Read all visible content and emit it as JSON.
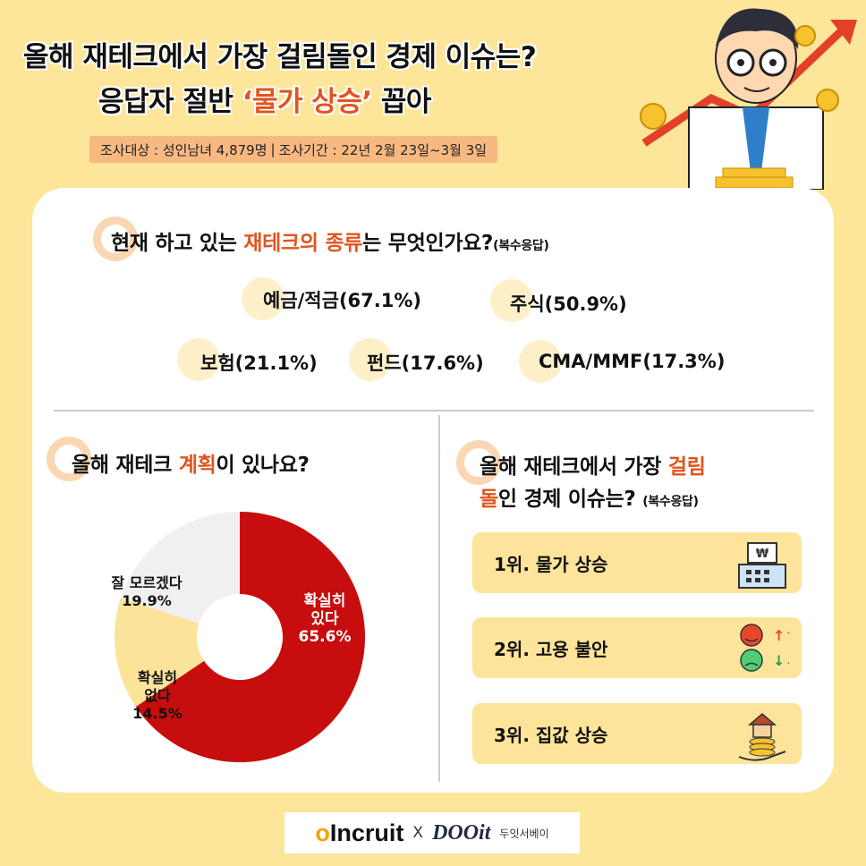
{
  "header": {
    "title_line1": "올해 재테크에서 가장 걸림돌인 경제 이슈는?",
    "title_line2_pre": "응답자 절반 ",
    "title_line2_hl": "‘물가 상승’",
    "title_line2_post": " 꼽아",
    "survey_target": "조사대상 : 성인남녀 4,879명",
    "separator": "|",
    "survey_period": "조사기간 : 22년 2월 23일~3월 3일"
  },
  "q1": {
    "pre": "현재 하고 있는 ",
    "hl": "재테크의 종류",
    "post": "는 무엇인가요?",
    "note": "(복수응답)",
    "items": [
      {
        "label": "예금/적금(67.1%)",
        "value": 67.1
      },
      {
        "label": "주식(50.9%)",
        "value": 50.9
      },
      {
        "label": "보험(21.1%)",
        "value": 21.1
      },
      {
        "label": "펀드(17.6%)",
        "value": 17.6
      },
      {
        "label": "CMA/MMF(17.3%)",
        "value": 17.3
      }
    ]
  },
  "q2": {
    "pre": "올해 재테크 ",
    "hl": "계획",
    "post": "이 있나요?"
  },
  "chart_data": {
    "type": "pie",
    "categories": [
      "확실히 있다",
      "확실히 없다",
      "잘 모르겠다"
    ],
    "values": [
      65.6,
      14.5,
      19.9
    ],
    "labels": [
      {
        "line1": "확실히",
        "line2": "있다",
        "pct": "65.6%"
      },
      {
        "line1": "확실히",
        "line2": "없다",
        "pct": "14.5%"
      },
      {
        "line1": "잘 모르겠다",
        "line2": "",
        "pct": "19.9%"
      }
    ],
    "colors": [
      "#c70d0d",
      "#fbe39a",
      "#f0f0f0"
    ]
  },
  "q3": {
    "pre": "올해 재테크에서 가장 ",
    "hl1": "걸림",
    "hl2": "돌",
    "post": "인 경제 이슈는?",
    "note": "(복수응답)",
    "ranks": [
      {
        "label": "1위. 물가 상승",
        "icon": "cash-register-icon"
      },
      {
        "label": "2위. 고용 불안",
        "icon": "mood-faces-icon"
      },
      {
        "label": "3위. 집값 상승",
        "icon": "house-coins-icon"
      }
    ]
  },
  "footer": {
    "incruit_o": "o",
    "incruit_rest": "Incruit",
    "x": "X",
    "doit": "DOOit",
    "doit_ko": "두잇서베이"
  },
  "colors": {
    "background": "#fde59a",
    "accent": "#e2541f",
    "red": "#c70d0d",
    "card": "#ffffff"
  }
}
